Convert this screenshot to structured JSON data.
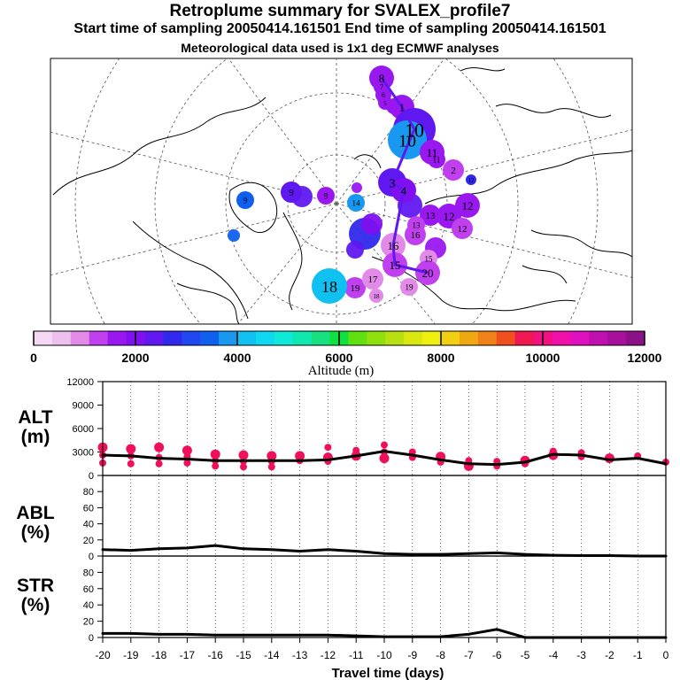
{
  "title": "Retroplume summary for SVALEX_profile7",
  "subtitle": "Start time of sampling 20050414.161501     End time of sampling 20050414.161501",
  "met_note": "Meteorological data used is 1x1 deg ECMWF analyses",
  "map": {
    "plume_labels": [
      "8",
      "7",
      "6",
      "5",
      "1",
      "10",
      "10",
      "11",
      "11",
      "2",
      "3",
      "4",
      "12",
      "12",
      "12",
      "13",
      "13",
      "14",
      "16",
      "16",
      "15",
      "15",
      "20",
      "19",
      "19",
      "18",
      "18",
      "17",
      "9",
      "9",
      "9",
      "12"
    ]
  },
  "colorbar": {
    "tick_labels": [
      "0",
      "2000",
      "4000",
      "6000",
      "8000",
      "10000",
      "12000"
    ],
    "label": "Altitude (m)",
    "colors": [
      "#f4d8f4",
      "#eec0ee",
      "#e28ae8",
      "#c040f0",
      "#9a18f0",
      "#8010f0",
      "#6018f0",
      "#3028ec",
      "#2048f0",
      "#1060f0",
      "#1898f0",
      "#10c0f0",
      "#10d8f0",
      "#10e8d8",
      "#10e8b0",
      "#18e080",
      "#10e040",
      "#60e010",
      "#90e010",
      "#b8e010",
      "#d8e810",
      "#f0f010",
      "#f0d010",
      "#f0a810",
      "#f08018",
      "#f05020",
      "#f01850",
      "#f01080",
      "#f010a8",
      "#e010c0",
      "#c010b0",
      "#a8109c",
      "#8c1088"
    ]
  },
  "chart_data": [
    {
      "type": "line",
      "panel": "ALT",
      "ylabel": "ALT\n(m)",
      "ylabel_lines": [
        "ALT",
        "(m)"
      ],
      "ylim": [
        0,
        12000
      ],
      "yticks": [
        "12000",
        "9000",
        "6000",
        "3000",
        "0"
      ],
      "yticks_values": [
        12000,
        9000,
        6000,
        3000,
        0
      ],
      "x": [
        -20,
        -19,
        -18,
        -17,
        -16,
        -15,
        -14,
        -13,
        -12,
        -11,
        -10,
        -9,
        -8,
        -7,
        -6,
        -5,
        -4,
        -3,
        -2,
        -1,
        0
      ],
      "values": [
        2600,
        2500,
        2200,
        2100,
        1900,
        1900,
        1900,
        1900,
        2000,
        2500,
        3100,
        2600,
        2000,
        1500,
        1400,
        1700,
        2700,
        2600,
        2000,
        2200,
        1500
      ],
      "scatter_color": "#f0105a",
      "scatter": [
        {
          "x": -20,
          "y": 3600
        },
        {
          "x": -20,
          "y": 2600
        },
        {
          "x": -20,
          "y": 1600
        },
        {
          "x": -19,
          "y": 3400
        },
        {
          "x": -19,
          "y": 2500
        },
        {
          "x": -19,
          "y": 1500
        },
        {
          "x": -18,
          "y": 3600
        },
        {
          "x": -18,
          "y": 2300
        },
        {
          "x": -18,
          "y": 1500
        },
        {
          "x": -17,
          "y": 3200
        },
        {
          "x": -17,
          "y": 2400
        },
        {
          "x": -17,
          "y": 1600
        },
        {
          "x": -16,
          "y": 2700
        },
        {
          "x": -16,
          "y": 1900
        },
        {
          "x": -16,
          "y": 1200
        },
        {
          "x": -15,
          "y": 2600
        },
        {
          "x": -15,
          "y": 1800
        },
        {
          "x": -15,
          "y": 1100
        },
        {
          "x": -14,
          "y": 2500
        },
        {
          "x": -14,
          "y": 1800
        },
        {
          "x": -14,
          "y": 1100
        },
        {
          "x": -13,
          "y": 2500
        },
        {
          "x": -13,
          "y": 1900
        },
        {
          "x": -12,
          "y": 3600
        },
        {
          "x": -12,
          "y": 2300
        },
        {
          "x": -12,
          "y": 1800
        },
        {
          "x": -11,
          "y": 3200
        },
        {
          "x": -11,
          "y": 2500
        },
        {
          "x": -10,
          "y": 3900
        },
        {
          "x": -10,
          "y": 3000
        },
        {
          "x": -10,
          "y": 2200
        },
        {
          "x": -9,
          "y": 3000
        },
        {
          "x": -9,
          "y": 2300
        },
        {
          "x": -8,
          "y": 2400
        },
        {
          "x": -8,
          "y": 1700
        },
        {
          "x": -7,
          "y": 1900
        },
        {
          "x": -7,
          "y": 1200
        },
        {
          "x": -6,
          "y": 1800
        },
        {
          "x": -6,
          "y": 1200
        },
        {
          "x": -5,
          "y": 1900
        },
        {
          "x": -5,
          "y": 1500
        },
        {
          "x": -4,
          "y": 3100
        },
        {
          "x": -4,
          "y": 2600
        },
        {
          "x": -3,
          "y": 2900
        },
        {
          "x": -3,
          "y": 2400
        },
        {
          "x": -2,
          "y": 2200
        },
        {
          "x": -1,
          "y": 2500
        },
        {
          "x": 0,
          "y": 1700
        }
      ]
    },
    {
      "type": "line",
      "panel": "ABL",
      "ylabel": "ABL\n(%)",
      "ylabel_lines": [
        "ABL",
        "(%)"
      ],
      "ylim": [
        0,
        100
      ],
      "yticks": [
        "80",
        "60",
        "40",
        "20",
        "0"
      ],
      "yticks_values": [
        80,
        60,
        40,
        20,
        0
      ],
      "x": [
        -20,
        -19,
        -18,
        -17,
        -16,
        -15,
        -14,
        -13,
        -12,
        -11,
        -10,
        -9,
        -8,
        -7,
        -6,
        -5,
        -4,
        -3,
        -2,
        -1,
        0
      ],
      "values": [
        8,
        7,
        9,
        10,
        13,
        9,
        8,
        6,
        8,
        6,
        3,
        2,
        2,
        3,
        4,
        2,
        1,
        0.5,
        0.5,
        0,
        0
      ]
    },
    {
      "type": "line",
      "panel": "STR",
      "ylabel": "STR\n(%)",
      "ylabel_lines": [
        "STR",
        "(%)"
      ],
      "ylim": [
        0,
        100
      ],
      "yticks": [
        "80",
        "60",
        "40",
        "20",
        "0"
      ],
      "yticks_values": [
        80,
        60,
        40,
        20,
        0
      ],
      "x": [
        -20,
        -19,
        -18,
        -17,
        -16,
        -15,
        -14,
        -13,
        -12,
        -11,
        -10,
        -9,
        -8,
        -7,
        -6,
        -5,
        -4,
        -3,
        -2,
        -1,
        0
      ],
      "values": [
        5,
        5,
        4,
        4,
        3,
        3,
        3,
        3,
        3,
        2,
        1,
        1,
        1,
        4,
        10,
        0,
        0,
        0,
        0,
        0,
        0
      ]
    }
  ],
  "xaxis": {
    "tick_labels": [
      "-20",
      "-19",
      "-18",
      "-17",
      "-16",
      "-15",
      "-14",
      "-13",
      "-12",
      "-11",
      "-10",
      "-9",
      "-8",
      "-7",
      "-6",
      "-5",
      "-4",
      "-3",
      "-2",
      "-1",
      "0"
    ],
    "label": "Travel time (days)"
  }
}
